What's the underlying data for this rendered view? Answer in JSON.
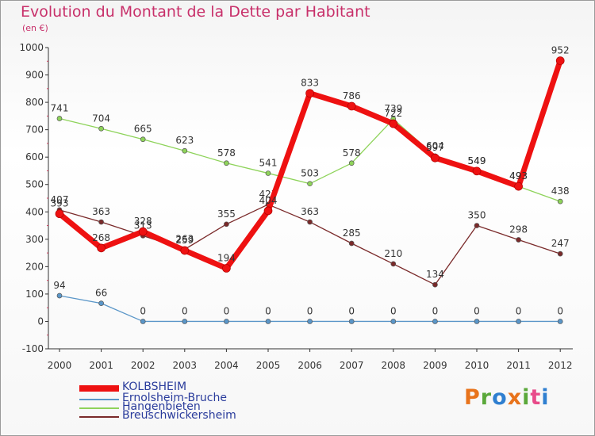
{
  "title": "Evolution du Montant de la Dette par Habitant",
  "subtitle": "(en €)",
  "logo": {
    "text": "Proxiti",
    "letter_colors": [
      "#e8731b",
      "#5aa83a",
      "#2f7fd0",
      "#e8731b",
      "#5aa83a",
      "#e84b8a",
      "#2f7fd0"
    ]
  },
  "chart_data": {
    "type": "line",
    "x": [
      "2000",
      "2001",
      "2002",
      "2003",
      "2004",
      "2005",
      "2006",
      "2007",
      "2008",
      "2009",
      "2010",
      "2011",
      "2012"
    ],
    "ylim": [
      -100,
      1000
    ],
    "yticks": [
      "-100",
      "0",
      "100",
      "200",
      "300",
      "400",
      "500",
      "600",
      "700",
      "800",
      "900",
      "1000"
    ],
    "grid": false,
    "legend_position": "bottom-left",
    "series": [
      {
        "name": "Hangenbieten",
        "color": "#8ed35a",
        "values": [
          741,
          704,
          665,
          623,
          578,
          541,
          503,
          578,
          739,
          604,
          549,
          493,
          438
        ],
        "labels": [
          "741",
          "704",
          "665",
          "623",
          "578",
          "541",
          "503",
          "578",
          "739",
          "604",
          "549",
          "493",
          "438"
        ]
      },
      {
        "name": "Breuschwickersheim",
        "color": "#7a2a2a",
        "values": [
          407,
          363,
          313,
          263,
          355,
          427,
          363,
          285,
          210,
          134,
          350,
          298,
          247
        ],
        "labels": [
          "407",
          "363",
          "313",
          "263",
          "355",
          "427",
          "363",
          "285",
          "210",
          "134",
          "350",
          "298",
          "247"
        ]
      },
      {
        "name": "Ernolsheim-Bruche",
        "color": "#5a96c8",
        "values": [
          94,
          66,
          0,
          0,
          0,
          0,
          0,
          0,
          0,
          0,
          0,
          0,
          0
        ],
        "labels": [
          "94",
          "66",
          "0",
          "0",
          "0",
          "0",
          "0",
          "0",
          "0",
          "0",
          "0",
          "0",
          "0"
        ]
      },
      {
        "name": "KOLBSHEIM",
        "color": "#ee1111",
        "values": [
          393,
          268,
          328,
          259,
          194,
          404,
          833,
          786,
          722,
          597,
          549,
          493,
          952
        ],
        "labels": [
          "393",
          "268",
          "328",
          "259",
          "194",
          "404",
          "833",
          "786",
          "722",
          "597",
          "549",
          "493",
          "952"
        ]
      }
    ],
    "legend_order": [
      "KOLBSHEIM",
      "Ernolsheim-Bruche",
      "Hangenbieten",
      "Breuschwickersheim"
    ]
  }
}
